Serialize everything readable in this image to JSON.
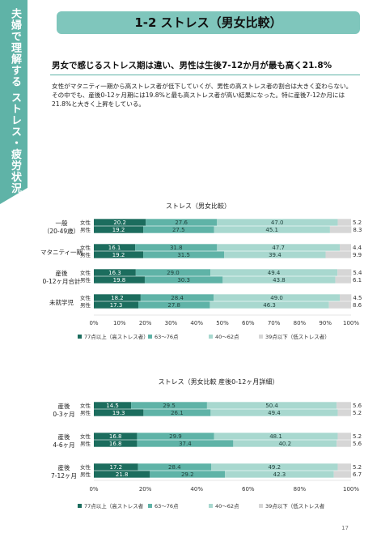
{
  "side_tab": {
    "text": "夫婦で理解する ストレス・疲労状況"
  },
  "header": {
    "title": "1-2 ストレス（男女比較）"
  },
  "headline": "男女で感じるストレス期は違い、男性は生後7-12か月が最も高く21.8%",
  "body": {
    "lines": [
      "女性がマタニティ一期から高ストレス者が低下していくが、男性の高ストレス者の割合は大きく変わらない。",
      "その中でも、産後0-12ヶ月期には19.8%と最も高ストレス者が高い結果になった。特に産後7-12か月には21.8%と大きく上昇をしている。"
    ]
  },
  "colors": {
    "brand": "#5fb3a7",
    "seg1": "#1c6d5e",
    "seg2": "#5fb3a7",
    "seg3": "#a8d8cf",
    "seg4": "#d6d6d6"
  },
  "chart_data": [
    {
      "type": "bar",
      "orientation": "horizontal-stacked-100",
      "title": "ストレス（男女比較）",
      "groups": [
        {
          "label": "一般\n（20-49歳）",
          "rows": [
            {
              "label": "女性",
              "values": [
                20.2,
                27.6,
                47.0,
                5.2
              ]
            },
            {
              "label": "男性",
              "values": [
                19.2,
                27.5,
                45.1,
                8.3
              ]
            }
          ]
        },
        {
          "label": "マタニティ一期",
          "rows": [
            {
              "label": "女性",
              "values": [
                16.1,
                31.8,
                47.7,
                4.4
              ]
            },
            {
              "label": "男性",
              "values": [
                19.2,
                31.5,
                39.4,
                9.9
              ]
            }
          ]
        },
        {
          "label": "産後\n0-12ヶ月合計",
          "rows": [
            {
              "label": "女性",
              "values": [
                16.3,
                29.0,
                49.4,
                5.4
              ]
            },
            {
              "label": "男性",
              "values": [
                19.8,
                30.3,
                43.8,
                6.1
              ]
            }
          ]
        },
        {
          "label": "未就学児",
          "rows": [
            {
              "label": "女性",
              "values": [
                18.2,
                28.4,
                49.0,
                4.5
              ]
            },
            {
              "label": "男性",
              "values": [
                17.3,
                27.8,
                46.3,
                8.6
              ]
            }
          ]
        }
      ],
      "xticks": [
        "0%",
        "10%",
        "20%",
        "30%",
        "40%",
        "50%",
        "60%",
        "70%",
        "80%",
        "90%",
        "100%"
      ],
      "xlim": [
        0,
        100
      ],
      "legend": [
        "77点以上（高ストレス者）",
        "63〜76点",
        "40〜62点",
        "39点以下（低ストレス者）"
      ]
    },
    {
      "type": "bar",
      "orientation": "horizontal-stacked-100",
      "title": "ストレス（男女比較 産後0-12ヶ月詳細）",
      "groups": [
        {
          "label": "産後\n0-3ヶ月",
          "rows": [
            {
              "label": "女性",
              "values": [
                14.5,
                29.5,
                50.4,
                5.6
              ]
            },
            {
              "label": "男性",
              "values": [
                19.3,
                26.1,
                49.4,
                5.2
              ]
            }
          ]
        },
        {
          "label": "産後\n4-6ヶ月",
          "rows": [
            {
              "label": "女性",
              "values": [
                16.8,
                29.9,
                48.1,
                5.2
              ]
            },
            {
              "label": "男性",
              "values": [
                16.8,
                37.4,
                40.2,
                5.6
              ]
            }
          ]
        },
        {
          "label": "産後\n7-12ヶ月",
          "rows": [
            {
              "label": "女性",
              "values": [
                17.2,
                28.4,
                49.2,
                5.2
              ]
            },
            {
              "label": "男性",
              "values": [
                21.8,
                29.2,
                42.3,
                6.7
              ]
            }
          ]
        }
      ],
      "xticks": [
        "0%",
        "20%",
        "40%",
        "60%",
        "80%",
        "100%"
      ],
      "xlim": [
        0,
        100
      ],
      "legend": [
        "77点以上（高ストレス者",
        "63〜76点",
        "40〜62点",
        "39点以下（低ストレス者"
      ]
    }
  ],
  "page_number": "17"
}
